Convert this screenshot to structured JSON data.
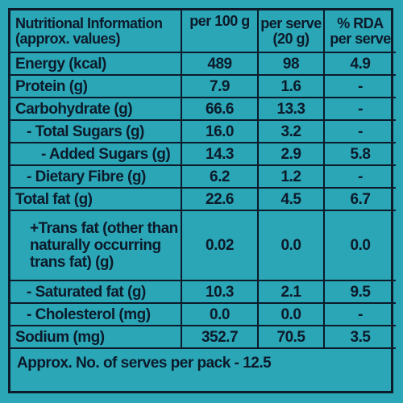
{
  "header": {
    "col1_line1": "Nutritional Information",
    "col1_line2": "(approx. values)",
    "col2": "per 100 g",
    "col3_line1": "per serve",
    "col3_line2": "(20 g)",
    "col4_line1": "% RDA",
    "col4_line2": "per serve"
  },
  "rows": [
    {
      "label": "Energy (kcal)",
      "per100": "489",
      "perServe": "98",
      "rda": "4.9"
    },
    {
      "label": "Protein (g)",
      "per100": "7.9",
      "perServe": "1.6",
      "rda": "-"
    },
    {
      "label": "Carbohydrate (g)",
      "per100": "66.6",
      "perServe": "13.3",
      "rda": "-"
    },
    {
      "label": "- Total Sugars (g)",
      "per100": "16.0",
      "perServe": "3.2",
      "rda": "-"
    },
    {
      "label": "- Added Sugars (g)",
      "per100": "14.3",
      "perServe": "2.9",
      "rda": "5.8"
    },
    {
      "label": "- Dietary Fibre (g)",
      "per100": "6.2",
      "perServe": "1.2",
      "rda": "-"
    },
    {
      "label": "Total fat (g)",
      "per100": "22.6",
      "perServe": "4.5",
      "rda": "6.7"
    },
    {
      "label": "+Trans fat (other than naturally occurring trans fat) (g)",
      "per100": "0.02",
      "perServe": "0.0",
      "rda": "0.0"
    },
    {
      "label": "- Saturated fat (g)",
      "per100": "10.3",
      "perServe": "2.1",
      "rda": "9.5"
    },
    {
      "label": "- Cholesterol (mg)",
      "per100": "0.0",
      "perServe": "0.0",
      "rda": "-"
    },
    {
      "label": "Sodium (mg)",
      "per100": "352.7",
      "perServe": "70.5",
      "rda": "3.5"
    }
  ],
  "footer": "Approx. No. of serves per pack - 12.5"
}
